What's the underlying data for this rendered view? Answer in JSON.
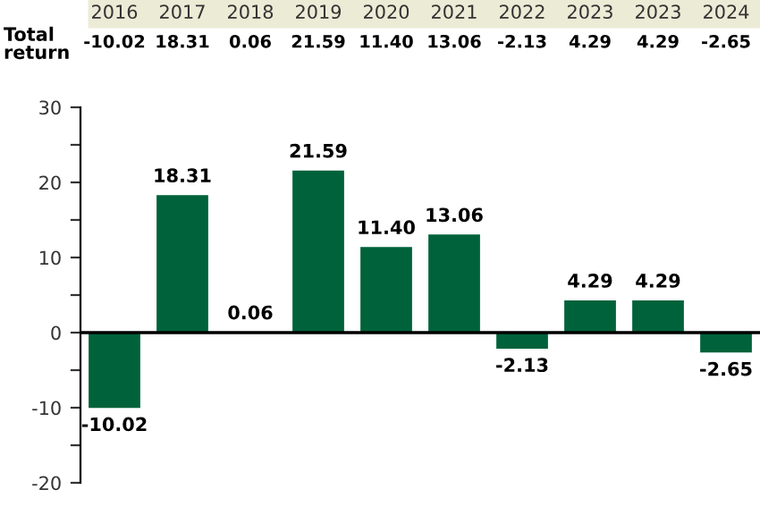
{
  "chart_data": {
    "type": "bar",
    "categories": [
      "2016",
      "2017",
      "2018",
      "2019",
      "2020",
      "2021",
      "2022",
      "2023",
      "2023",
      "2024"
    ],
    "values": [
      -10.02,
      18.31,
      0.06,
      21.59,
      11.4,
      13.06,
      -2.13,
      4.29,
      4.29,
      -2.65
    ],
    "value_labels": [
      "-10.02",
      "18.31",
      "0.06",
      "21.59",
      "11.40",
      "13.06",
      "-2.13",
      "4.29",
      "4.29",
      "-2.65"
    ],
    "color": "#00623a",
    "annotations": [
      "Total return"
    ],
    "ylim": [
      -20,
      30
    ],
    "yticks": [
      -20,
      {
        "value": -15,
        "label": null
      },
      -10,
      {
        "value": -5,
        "label": null
      },
      0,
      {
        "value": 5,
        "label": null
      },
      10,
      {
        "value": 15,
        "label": null
      },
      20,
      {
        "value": 25,
        "label": null
      },
      30
    ],
    "ref_lines": [
      {
        "axis": "y",
        "value": 0,
        "color": "#000000"
      }
    ],
    "grid": false,
    "legend": false
  }
}
